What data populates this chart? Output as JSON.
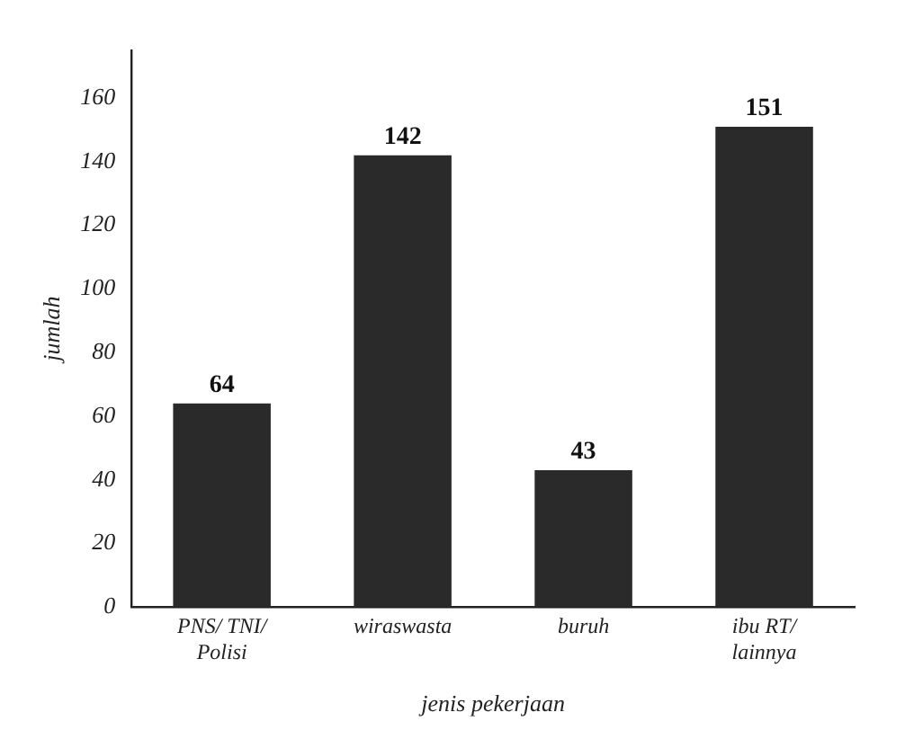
{
  "chart_data": {
    "type": "bar",
    "xlabel": "jenis pekerjaan",
    "ylabel": "jumlah",
    "categories": [
      "PNS/ TNI/ Polisi",
      "wiraswasta",
      "buruh",
      "ibu RT/ lainnya"
    ],
    "values": [
      64,
      142,
      43,
      151
    ],
    "color": "#2a2a2a",
    "ylim": [
      0,
      175
    ],
    "yticks": [
      0,
      20,
      40,
      60,
      80,
      100,
      120,
      140,
      160
    ],
    "grid": false,
    "data_labels": true
  }
}
